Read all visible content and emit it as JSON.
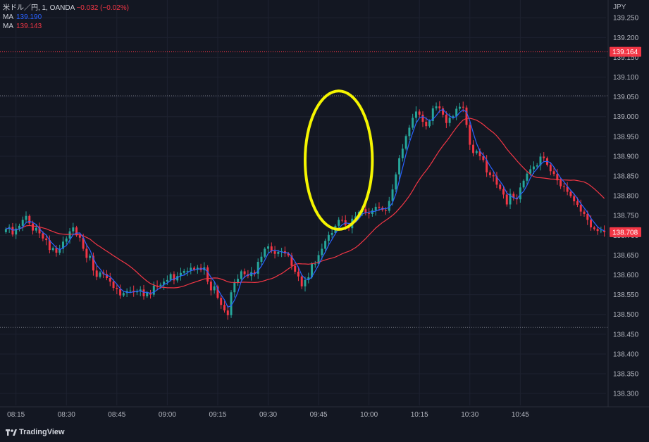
{
  "legend": {
    "symbol": "米ドル／円, 1, OANDA",
    "change": "−0.032 (−0.02%)",
    "ma1_label": "MA",
    "ma1_value": "139.190",
    "ma2_label": "MA",
    "ma2_value": "139.143"
  },
  "logo_text": "TradingView",
  "colors": {
    "background": "#131722",
    "up": "#26a69a",
    "down": "#f23645",
    "ma_fast": "#2962ff",
    "ma_slow": "#f23645",
    "highlight": "#f5f500",
    "price_tag": "#f23645"
  },
  "chart_data": {
    "type": "candlestick",
    "currency_label": "JPY",
    "ylim": [
      138.27,
      139.27
    ],
    "y_ticks": [
      "139.250",
      "139.200",
      "139.150",
      "139.100",
      "139.050",
      "139.000",
      "138.950",
      "138.900",
      "138.850",
      "138.800",
      "138.750",
      "138.700",
      "138.650",
      "138.600",
      "138.550",
      "138.500",
      "138.450",
      "138.400",
      "138.350",
      "138.300"
    ],
    "x_ticks": [
      "08:15",
      "08:30",
      "08:45",
      "09:00",
      "09:15",
      "09:30",
      "09:45",
      "10:00",
      "10:15",
      "10:30",
      "10:45"
    ],
    "price_tags": [
      {
        "value": 139.164,
        "label": "139.164"
      },
      {
        "value": 138.708,
        "label": "138.708"
      }
    ],
    "reference_lines": [
      139.164,
      139.053,
      138.467
    ],
    "highlight_ellipse": {
      "time_start": "09:41",
      "time_end": "10:01",
      "price_low": 138.715,
      "price_high": 139.065
    },
    "series": [
      {
        "name": "close",
        "start_time": "08:12",
        "interval_minutes": 1,
        "close": [
          138.716,
          138.721,
          138.702,
          138.717,
          138.724,
          138.739,
          138.749,
          138.73,
          138.712,
          138.719,
          138.705,
          138.692,
          138.688,
          138.663,
          138.668,
          138.656,
          138.666,
          138.684,
          138.692,
          138.71,
          138.72,
          138.7,
          138.694,
          138.666,
          138.643,
          138.648,
          138.611,
          138.595,
          138.606,
          138.602,
          138.592,
          138.583,
          138.567,
          138.564,
          138.548,
          138.554,
          138.559,
          138.56,
          138.556,
          138.559,
          138.563,
          138.546,
          138.555,
          138.55,
          138.573,
          138.572,
          138.575,
          138.583,
          138.587,
          138.602,
          138.586,
          138.597,
          138.605,
          138.61,
          138.61,
          138.618,
          138.613,
          138.618,
          138.612,
          138.619,
          138.583,
          138.561,
          138.571,
          138.542,
          138.524,
          138.51,
          138.498,
          138.556,
          138.581,
          138.59,
          138.609,
          138.602,
          138.597,
          138.607,
          138.603,
          138.633,
          138.646,
          138.666,
          138.672,
          138.66,
          138.653,
          138.658,
          138.66,
          138.654,
          138.649,
          138.623,
          138.608,
          138.596,
          138.571,
          138.587,
          138.594,
          138.628,
          138.628,
          138.65,
          138.666,
          138.686,
          138.701,
          138.706,
          138.724,
          138.739,
          138.738,
          138.725,
          138.718,
          138.742,
          138.748,
          138.759,
          138.766,
          138.756,
          138.754,
          138.763,
          138.772,
          138.77,
          138.764,
          138.762,
          138.787,
          138.816,
          138.854,
          138.895,
          138.919,
          138.951,
          138.972,
          138.997,
          139.013,
          139.005,
          138.987,
          138.976,
          138.989,
          139.021,
          139.026,
          139.021,
          139.005,
          138.984,
          138.997,
          139.001,
          139.02,
          139.025,
          139.023,
          138.979,
          138.929,
          138.908,
          138.913,
          138.9,
          138.89,
          138.859,
          138.852,
          138.849,
          138.828,
          138.817,
          138.803,
          138.778,
          138.805,
          138.795,
          138.791,
          138.821,
          138.838,
          138.856,
          138.867,
          138.874,
          138.877,
          138.899,
          138.895,
          138.878,
          138.862,
          138.855,
          138.839,
          138.824,
          138.823,
          138.81,
          138.799,
          138.786,
          138.777,
          138.76,
          138.754,
          138.739,
          138.72,
          138.716,
          138.711,
          138.712,
          138.708
        ]
      },
      {
        "name": "MA 139.190"
      },
      {
        "name": "MA 139.143"
      }
    ]
  }
}
